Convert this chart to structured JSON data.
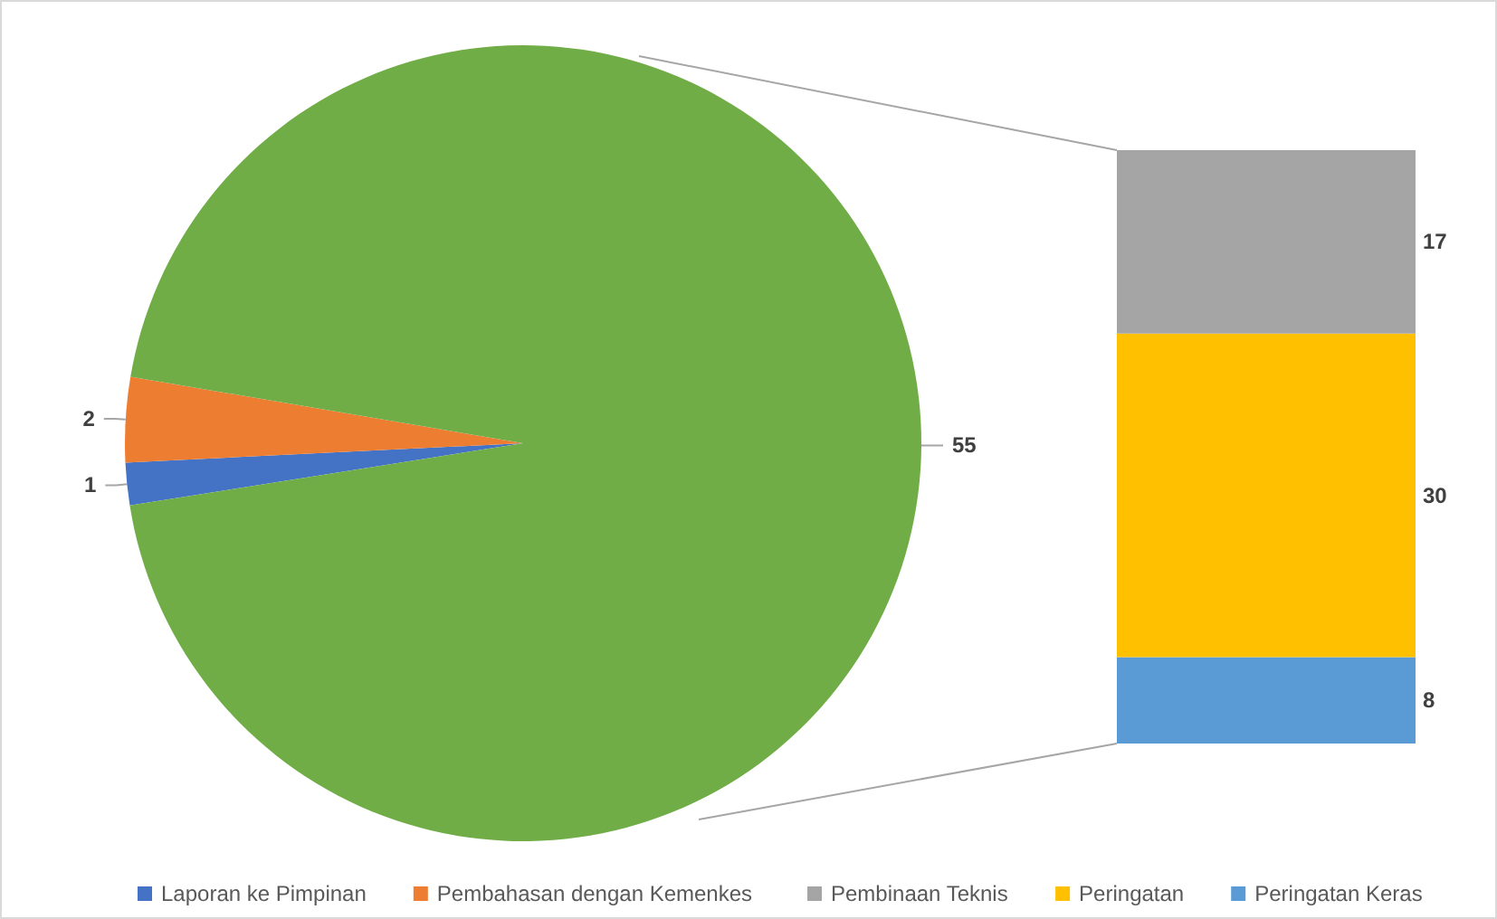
{
  "chart_data": [
    {
      "type": "pie",
      "categories": [
        "Laporan ke Pimpinan",
        "Pembahasan dengan Kemenkes",
        null
      ],
      "values": [
        1,
        2,
        55
      ],
      "colors": [
        "#4472c4",
        "#ed7d31",
        "#70ad47"
      ],
      "data_labels": true,
      "legend": "bottom"
    },
    {
      "type": "bar",
      "stacked": true,
      "categories": [
        null
      ],
      "data_labels": true,
      "legend": "bottom",
      "series": [
        {
          "name": "Peringatan Keras",
          "color": "#5b9bd5",
          "values": [
            8
          ]
        },
        {
          "name": "Peringatan",
          "color": "#ffc000",
          "values": [
            30
          ]
        },
        {
          "name": "Pembinaan Teknis",
          "color": "#a5a5a5",
          "values": [
            17
          ]
        }
      ]
    }
  ]
}
